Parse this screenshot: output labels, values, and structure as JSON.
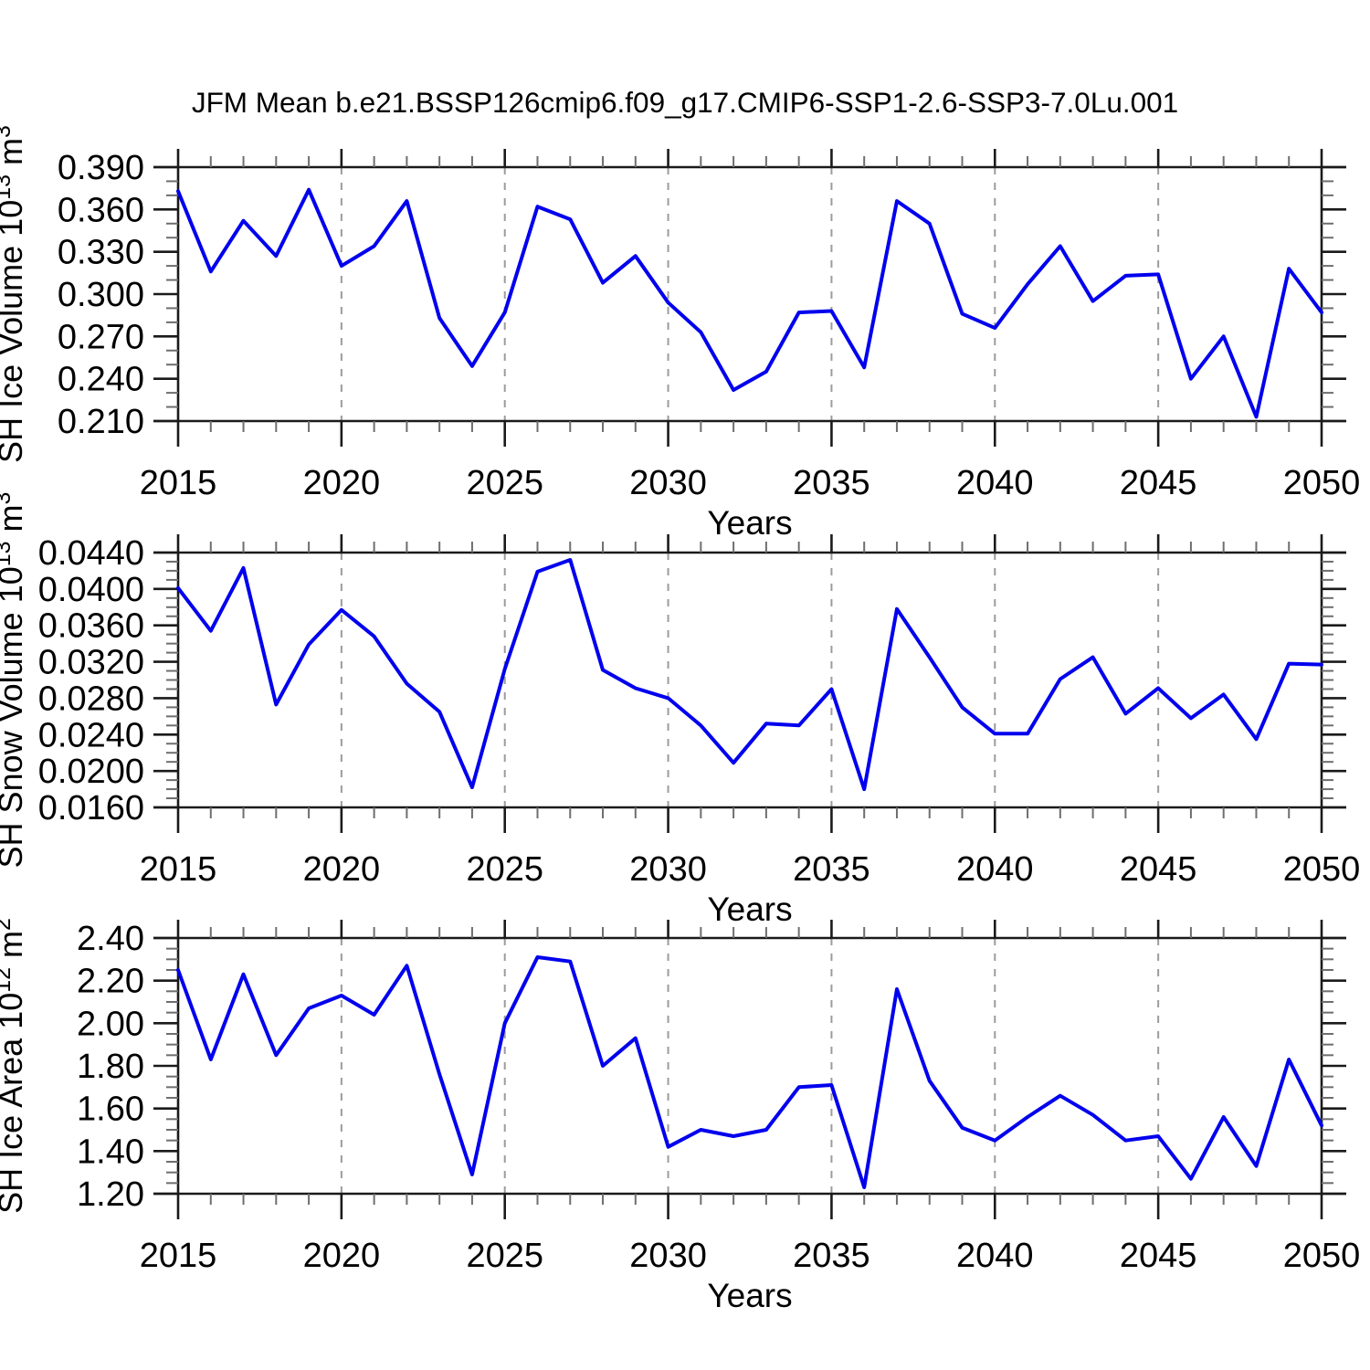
{
  "title": "JFM Mean b.e21.BSSP126cmip6.f09_g17.CMIP6-SSP1-2.6-SSP3-7.0Lu.001",
  "figure": {
    "background": "#ffffff",
    "line_color": "#0000EE",
    "grid_color": "#9c9c9c",
    "axis_color": "#1a1a1a",
    "minor_tick_color": "#6e6e6e"
  },
  "chart_data": [
    {
      "type": "line",
      "name": "sh-ice-volume",
      "title": "",
      "xlabel": "Years",
      "ylabel": "SH Ice Volume 10^13 m^3",
      "ylabel_rich": [
        {
          "t": "SH Ice Volume 10"
        },
        {
          "t": "13",
          "sup": true
        },
        {
          "t": " m"
        },
        {
          "t": "3",
          "sup": true
        }
      ],
      "ylim": [
        0.21,
        0.39
      ],
      "ytick_labels": [
        "0.390",
        "0.360",
        "0.330",
        "0.300",
        "0.270",
        "0.240",
        "0.210"
      ],
      "yminor_step": 0.01,
      "xlim": [
        2015,
        2050
      ],
      "xtick_labels": [
        "2015",
        "2020",
        "2025",
        "2030",
        "2035",
        "2040",
        "2045",
        "2050"
      ],
      "grid_years": [
        2020,
        2025,
        2030,
        2035,
        2040,
        2045
      ],
      "x": [
        2015,
        2016,
        2017,
        2018,
        2019,
        2020,
        2021,
        2022,
        2023,
        2024,
        2025,
        2026,
        2027,
        2028,
        2029,
        2030,
        2031,
        2032,
        2033,
        2034,
        2035,
        2036,
        2037,
        2038,
        2039,
        2040,
        2041,
        2042,
        2043,
        2044,
        2045,
        2046,
        2047,
        2048,
        2049,
        2050
      ],
      "series": [
        {
          "name": "SH Ice Volume",
          "values": [
            0.373,
            0.316,
            0.352,
            0.327,
            0.374,
            0.32,
            0.334,
            0.366,
            0.283,
            0.249,
            0.287,
            0.362,
            0.353,
            0.308,
            0.327,
            0.294,
            0.273,
            0.232,
            0.245,
            0.287,
            0.288,
            0.248,
            0.366,
            0.35,
            0.286,
            0.276,
            0.307,
            0.334,
            0.295,
            0.313,
            0.314,
            0.24,
            0.27,
            0.213,
            0.318,
            0.287
          ]
        }
      ]
    },
    {
      "type": "line",
      "name": "sh-snow-volume",
      "title": "",
      "xlabel": "Years",
      "ylabel": "SH Snow Volume 10^13 m^3",
      "ylabel_rich": [
        {
          "t": "SH Snow Volume 10"
        },
        {
          "t": "13",
          "sup": true
        },
        {
          "t": " m"
        },
        {
          "t": "3",
          "sup": true
        }
      ],
      "ylim": [
        0.016,
        0.044
      ],
      "ytick_labels": [
        "0.0440",
        "0.0400",
        "0.0360",
        "0.0320",
        "0.0280",
        "0.0240",
        "0.0200",
        "0.0160"
      ],
      "yminor_step": 0.001,
      "xlim": [
        2015,
        2050
      ],
      "xtick_labels": [
        "2015",
        "2020",
        "2025",
        "2030",
        "2035",
        "2040",
        "2045",
        "2050"
      ],
      "grid_years": [
        2020,
        2025,
        2030,
        2035,
        2040,
        2045
      ],
      "x": [
        2015,
        2016,
        2017,
        2018,
        2019,
        2020,
        2021,
        2022,
        2023,
        2024,
        2025,
        2026,
        2027,
        2028,
        2029,
        2030,
        2031,
        2032,
        2033,
        2034,
        2035,
        2036,
        2037,
        2038,
        2039,
        2040,
        2041,
        2042,
        2043,
        2044,
        2045,
        2046,
        2047,
        2048,
        2049,
        2050
      ],
      "series": [
        {
          "name": "SH Snow Volume",
          "values": [
            0.0401,
            0.0354,
            0.0423,
            0.0273,
            0.0339,
            0.0377,
            0.0348,
            0.0296,
            0.0265,
            0.0182,
            0.0312,
            0.0419,
            0.0432,
            0.0311,
            0.0291,
            0.028,
            0.025,
            0.0209,
            0.0252,
            0.025,
            0.029,
            0.018,
            0.0378,
            0.0325,
            0.027,
            0.0241,
            0.0241,
            0.0301,
            0.0325,
            0.0263,
            0.0291,
            0.0258,
            0.0284,
            0.0235,
            0.0318,
            0.0317
          ]
        }
      ]
    },
    {
      "type": "line",
      "name": "sh-ice-area",
      "title": "",
      "xlabel": "Years",
      "ylabel": "SH Ice Area 10^12 m^2",
      "ylabel_rich": [
        {
          "t": "SH Ice Area 10"
        },
        {
          "t": "12",
          "sup": true
        },
        {
          "t": " m"
        },
        {
          "t": "2",
          "sup": true
        }
      ],
      "ylim": [
        1.2,
        2.4
      ],
      "ytick_labels": [
        "2.40",
        "2.20",
        "2.00",
        "1.80",
        "1.60",
        "1.40",
        "1.20"
      ],
      "yminor_step": 0.05,
      "xlim": [
        2015,
        2050
      ],
      "xtick_labels": [
        "2015",
        "2020",
        "2025",
        "2030",
        "2035",
        "2040",
        "2045",
        "2050"
      ],
      "grid_years": [
        2020,
        2025,
        2030,
        2035,
        2040,
        2045
      ],
      "x": [
        2015,
        2016,
        2017,
        2018,
        2019,
        2020,
        2021,
        2022,
        2023,
        2024,
        2025,
        2026,
        2027,
        2028,
        2029,
        2030,
        2031,
        2032,
        2033,
        2034,
        2035,
        2036,
        2037,
        2038,
        2039,
        2040,
        2041,
        2042,
        2043,
        2044,
        2045,
        2046,
        2047,
        2048,
        2049,
        2050
      ],
      "series": [
        {
          "name": "SH Ice Area",
          "values": [
            2.25,
            1.83,
            2.23,
            1.85,
            2.07,
            2.13,
            2.04,
            2.27,
            1.76,
            1.29,
            2.0,
            2.31,
            2.29,
            1.8,
            1.93,
            1.42,
            1.5,
            1.47,
            1.5,
            1.7,
            1.71,
            1.23,
            2.16,
            1.73,
            1.51,
            1.45,
            1.56,
            1.66,
            1.57,
            1.45,
            1.47,
            1.27,
            1.56,
            1.33,
            1.83,
            1.52
          ]
        }
      ]
    }
  ]
}
